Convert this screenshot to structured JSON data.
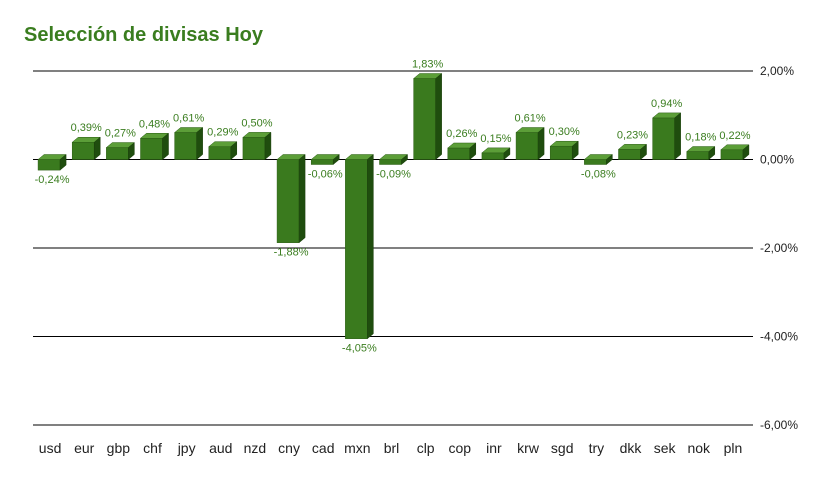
{
  "chart_data": {
    "type": "bar",
    "title": "Selección de divisas Hoy",
    "categories": [
      "usd",
      "eur",
      "gbp",
      "chf",
      "jpy",
      "aud",
      "nzd",
      "cny",
      "cad",
      "mxn",
      "brl",
      "clp",
      "cop",
      "inr",
      "krw",
      "sgd",
      "try",
      "dkk",
      "sek",
      "nok",
      "pln"
    ],
    "values": [
      -0.24,
      0.39,
      0.27,
      0.48,
      0.61,
      0.29,
      0.5,
      -1.88,
      -0.06,
      -4.05,
      -0.09,
      1.83,
      0.26,
      0.15,
      0.61,
      0.3,
      -0.08,
      0.23,
      0.94,
      0.18,
      0.22
    ],
    "value_labels": [
      "-0,24%",
      "0,39%",
      "0,27%",
      "0,48%",
      "0,61%",
      "0,29%",
      "0,50%",
      "-1,88%",
      "-0,06%",
      "-4,05%",
      "-0,09%",
      "1,83%",
      "0,26%",
      "0,15%",
      "0,61%",
      "0,30%",
      "-0,08%",
      "0,23%",
      "0,94%",
      "0,18%",
      "0,22%"
    ],
    "ylim": [
      -6,
      2
    ],
    "y_ticks": [
      2,
      0,
      -2,
      -4,
      -6
    ],
    "y_tick_labels": [
      "2,00%",
      "0,00%",
      "-2,00%",
      "-4,00%",
      "-6,00%"
    ],
    "y_axis_position": "right",
    "grid": true,
    "colors": {
      "bar_front": "#3a7a1e",
      "bar_top": "#5c9e38",
      "bar_side": "#1f4d0e",
      "label": "#3a7d1f",
      "grid": "#000000"
    }
  }
}
